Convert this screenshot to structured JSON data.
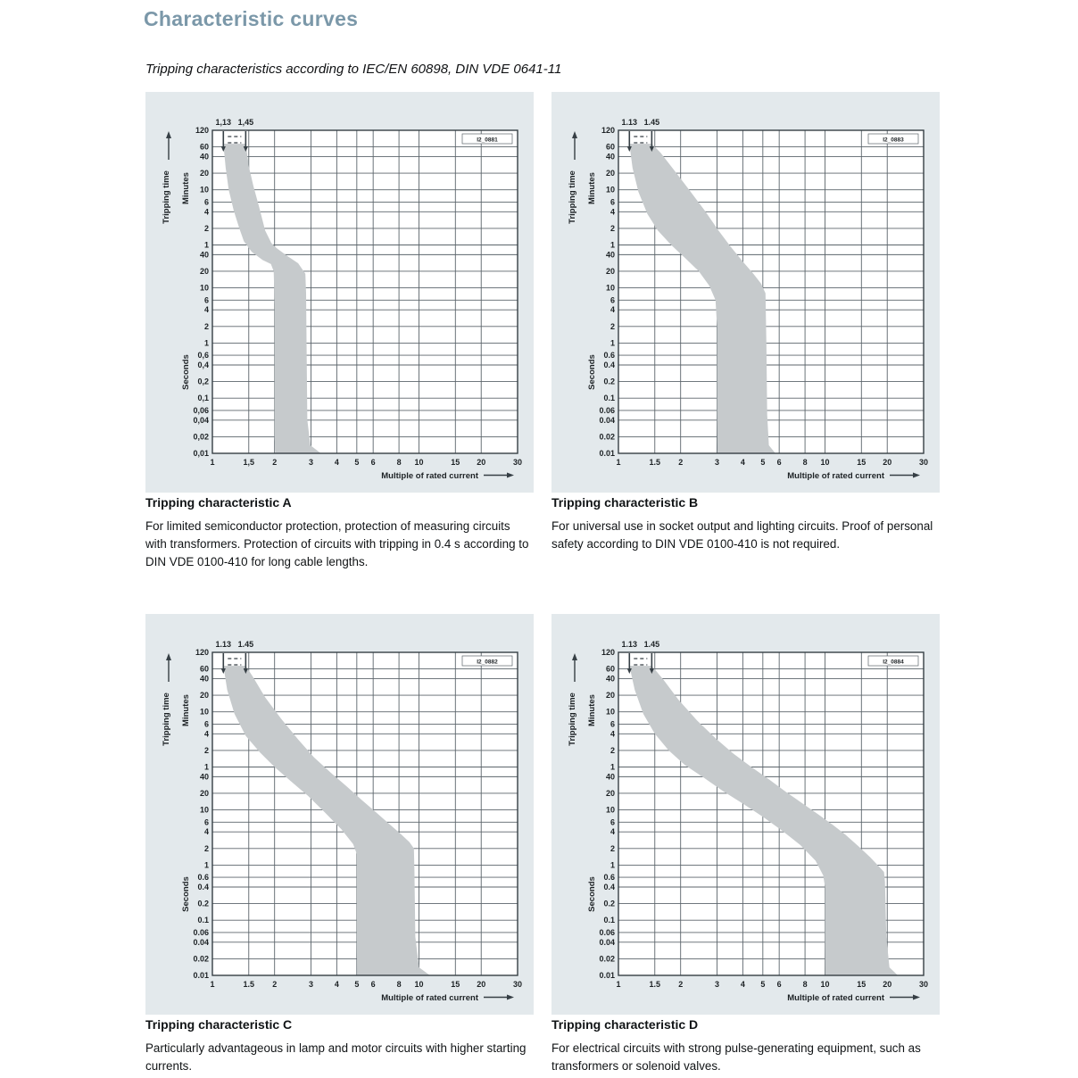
{
  "page": {
    "title": "Characteristic curves",
    "subtitle": "Tripping characteristics according to IEC/EN 60898, DIN VDE 0641-11"
  },
  "colors": {
    "title_blue": "#7b98a9",
    "panel_bg": "#e3e9ec",
    "plot_bg": "#ffffff",
    "band_gray": "#c6cacc",
    "grid": "#5c656b",
    "plot_border": "#363f45",
    "chart_text": "#1d2225"
  },
  "axes": {
    "x_label": "Multiple of rated current",
    "y_label": "Tripping time",
    "y_unit_top": "Minutes",
    "y_unit_bottom": "Seconds",
    "x_ticks": [
      1,
      1.5,
      2,
      3,
      4,
      5,
      6,
      8,
      10,
      15,
      20,
      30
    ],
    "y_ticks_minutes": [
      120,
      60,
      40,
      20,
      10,
      6,
      4,
      2,
      1
    ],
    "y_ticks_seconds": [
      40,
      20,
      10,
      6,
      4,
      2,
      1,
      0.6,
      0.4,
      0.2,
      0.1,
      0.06,
      0.04,
      0.02,
      0.01
    ],
    "xlim": [
      1,
      30
    ],
    "ylim_seconds": [
      0.01,
      7200
    ],
    "thermal_markers": [
      1.13,
      1.45
    ]
  },
  "chart_data": [
    {
      "id": "A",
      "type": "area",
      "fig_id": "I2_0881",
      "decimal_comma": true,
      "caption_title": "Tripping characteristic A",
      "caption_text": "For limited semiconductor protection, protection of measuring circuits with transformers. Protection of circuits with tripping in 0.4 s according to DIN VDE 0100-410 for long cable lengths.",
      "instantaneous_trip_range": [
        2,
        3
      ],
      "band_outline": [
        [
          1.13,
          4100
        ],
        [
          1.16,
          1500
        ],
        [
          1.2,
          600
        ],
        [
          1.27,
          250
        ],
        [
          1.35,
          120
        ],
        [
          1.42,
          70
        ],
        [
          1.55,
          45
        ],
        [
          1.75,
          32
        ],
        [
          1.92,
          27
        ],
        [
          1.98,
          20
        ],
        [
          2.0,
          5
        ],
        [
          2.0,
          0.3
        ],
        [
          2.0,
          0.02
        ],
        [
          2.02,
          0.01
        ],
        [
          3.35,
          0.01
        ],
        [
          2.98,
          0.014
        ],
        [
          2.88,
          0.04
        ],
        [
          2.86,
          0.5
        ],
        [
          2.84,
          8
        ],
        [
          2.82,
          18
        ],
        [
          2.6,
          28
        ],
        [
          2.3,
          38
        ],
        [
          2.05,
          52
        ],
        [
          1.93,
          65
        ],
        [
          1.8,
          110
        ],
        [
          1.68,
          300
        ],
        [
          1.58,
          700
        ],
        [
          1.5,
          1600
        ],
        [
          1.45,
          4100
        ]
      ]
    },
    {
      "id": "B",
      "type": "area",
      "fig_id": "I2_0883",
      "decimal_comma": false,
      "caption_title": "Tripping characteristic B",
      "caption_text": "For universal use in socket output and lighting circuits. Proof of personal safety according to DIN VDE 0100-410 is not required.",
      "instantaneous_trip_range": [
        3,
        5
      ],
      "band_outline": [
        [
          1.13,
          4100
        ],
        [
          1.17,
          1500
        ],
        [
          1.25,
          550
        ],
        [
          1.38,
          220
        ],
        [
          1.55,
          110
        ],
        [
          1.8,
          60
        ],
        [
          2.1,
          35
        ],
        [
          2.45,
          20
        ],
        [
          2.75,
          11
        ],
        [
          2.95,
          6
        ],
        [
          3.0,
          2
        ],
        [
          3.0,
          0.05
        ],
        [
          3.02,
          0.01
        ],
        [
          5.75,
          0.01
        ],
        [
          5.35,
          0.014
        ],
        [
          5.25,
          0.05
        ],
        [
          5.2,
          1
        ],
        [
          5.15,
          8
        ],
        [
          4.9,
          12
        ],
        [
          4.5,
          18
        ],
        [
          4.0,
          30
        ],
        [
          3.5,
          55
        ],
        [
          3.05,
          110
        ],
        [
          2.6,
          260
        ],
        [
          2.2,
          600
        ],
        [
          1.85,
          1400
        ],
        [
          1.6,
          2800
        ],
        [
          1.45,
          4100
        ]
      ]
    },
    {
      "id": "C",
      "type": "area",
      "fig_id": "I2_0882",
      "decimal_comma": false,
      "caption_title": "Tripping characteristic C",
      "caption_text": "Particularly advantageous in lamp and motor circuits with higher starting currents.",
      "instantaneous_trip_range": [
        5,
        10
      ],
      "band_outline": [
        [
          1.13,
          4100
        ],
        [
          1.18,
          1500
        ],
        [
          1.28,
          550
        ],
        [
          1.45,
          220
        ],
        [
          1.7,
          110
        ],
        [
          2.0,
          60
        ],
        [
          2.4,
          33
        ],
        [
          2.9,
          18
        ],
        [
          3.5,
          9
        ],
        [
          4.2,
          4.5
        ],
        [
          4.8,
          2.4
        ],
        [
          5.0,
          1.6
        ],
        [
          5.0,
          0.05
        ],
        [
          5.02,
          0.01
        ],
        [
          11.3,
          0.01
        ],
        [
          10.0,
          0.014
        ],
        [
          9.6,
          0.05
        ],
        [
          9.5,
          0.8
        ],
        [
          9.45,
          2.0
        ],
        [
          9.0,
          2.6
        ],
        [
          8.2,
          3.6
        ],
        [
          7.2,
          5.5
        ],
        [
          6.2,
          9
        ],
        [
          5.3,
          15
        ],
        [
          4.5,
          26
        ],
        [
          3.8,
          45
        ],
        [
          3.1,
          90
        ],
        [
          2.6,
          190
        ],
        [
          2.15,
          450
        ],
        [
          1.8,
          1100
        ],
        [
          1.58,
          2500
        ],
        [
          1.45,
          4100
        ]
      ]
    },
    {
      "id": "D",
      "type": "area",
      "fig_id": "I2_0884",
      "decimal_comma": false,
      "caption_title": "Tripping characteristic D",
      "caption_text": "For electrical circuits with strong pulse-generating equipment, such as transformers or solenoid valves.",
      "instantaneous_trip_range": [
        10,
        20
      ],
      "band_outline": [
        [
          1.13,
          4100
        ],
        [
          1.2,
          1500
        ],
        [
          1.32,
          550
        ],
        [
          1.5,
          240
        ],
        [
          1.75,
          120
        ],
        [
          2.1,
          65
        ],
        [
          2.6,
          38
        ],
        [
          3.2,
          22
        ],
        [
          4.0,
          13
        ],
        [
          5.0,
          7.5
        ],
        [
          6.2,
          4.2
        ],
        [
          7.6,
          2.3
        ],
        [
          9.0,
          1.2
        ],
        [
          9.8,
          0.65
        ],
        [
          10.0,
          0.4
        ],
        [
          10.0,
          0.05
        ],
        [
          10.03,
          0.01
        ],
        [
          22.5,
          0.01
        ],
        [
          20.5,
          0.014
        ],
        [
          19.8,
          0.05
        ],
        [
          19.5,
          0.5
        ],
        [
          19.3,
          0.75
        ],
        [
          18.2,
          0.95
        ],
        [
          16.5,
          1.4
        ],
        [
          14.5,
          2.2
        ],
        [
          12.5,
          3.6
        ],
        [
          10.8,
          5.5
        ],
        [
          9.2,
          8.5
        ],
        [
          7.8,
          13
        ],
        [
          6.5,
          21
        ],
        [
          5.4,
          35
        ],
        [
          4.4,
          60
        ],
        [
          3.6,
          105
        ],
        [
          2.95,
          200
        ],
        [
          2.4,
          420
        ],
        [
          1.95,
          1000
        ],
        [
          1.65,
          2300
        ],
        [
          1.45,
          4100
        ]
      ]
    }
  ]
}
